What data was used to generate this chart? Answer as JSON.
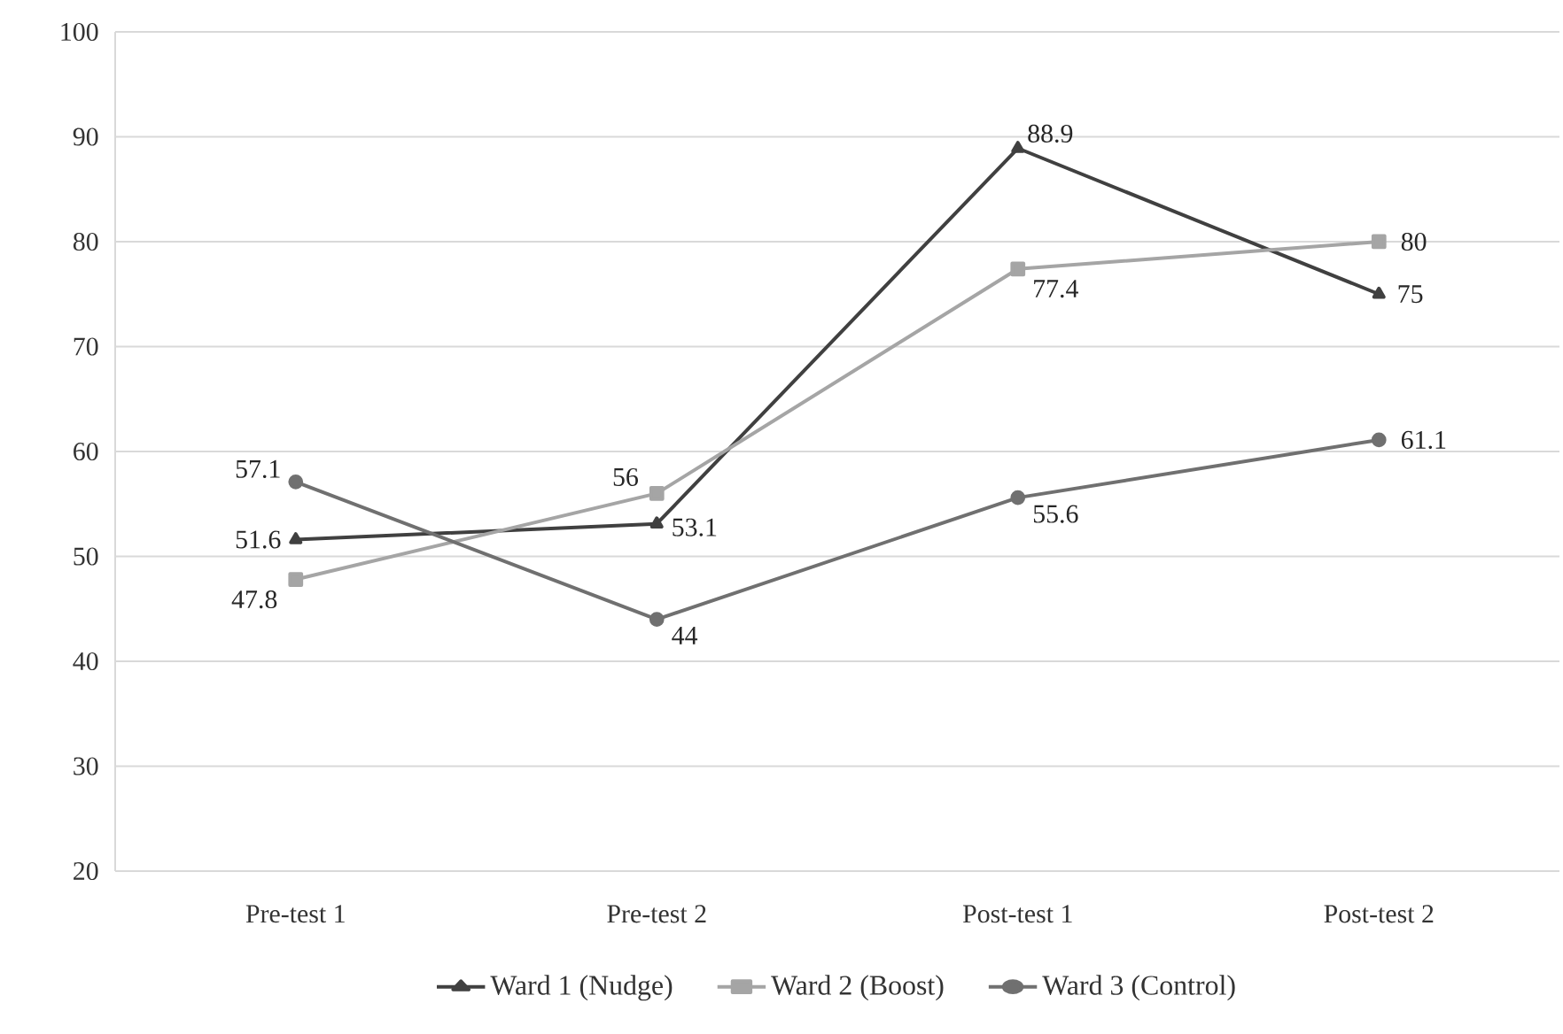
{
  "chart_data": {
    "type": "line",
    "categories": [
      "Pre-test 1",
      "Pre-test 2",
      "Post-test 1",
      "Post-test 2"
    ],
    "series": [
      {
        "name": "Ward 1 (Nudge)",
        "color": "#404040",
        "marker": "triangle",
        "values": [
          51.6,
          53.1,
          88.9,
          75
        ]
      },
      {
        "name": "Ward 2 (Boost)",
        "color": "#a5a5a5",
        "marker": "square",
        "values": [
          47.8,
          56,
          77.4,
          80
        ]
      },
      {
        "name": "Ward 3 (Control)",
        "color": "#707070",
        "marker": "circle",
        "values": [
          57.1,
          44,
          55.6,
          61.1
        ]
      }
    ],
    "ylim": [
      20,
      100
    ],
    "yticks": [
      20,
      30,
      40,
      50,
      60,
      70,
      80,
      90,
      100
    ],
    "grid": "y",
    "legend": "bottom",
    "data_labels": true,
    "line_style": "solid"
  }
}
